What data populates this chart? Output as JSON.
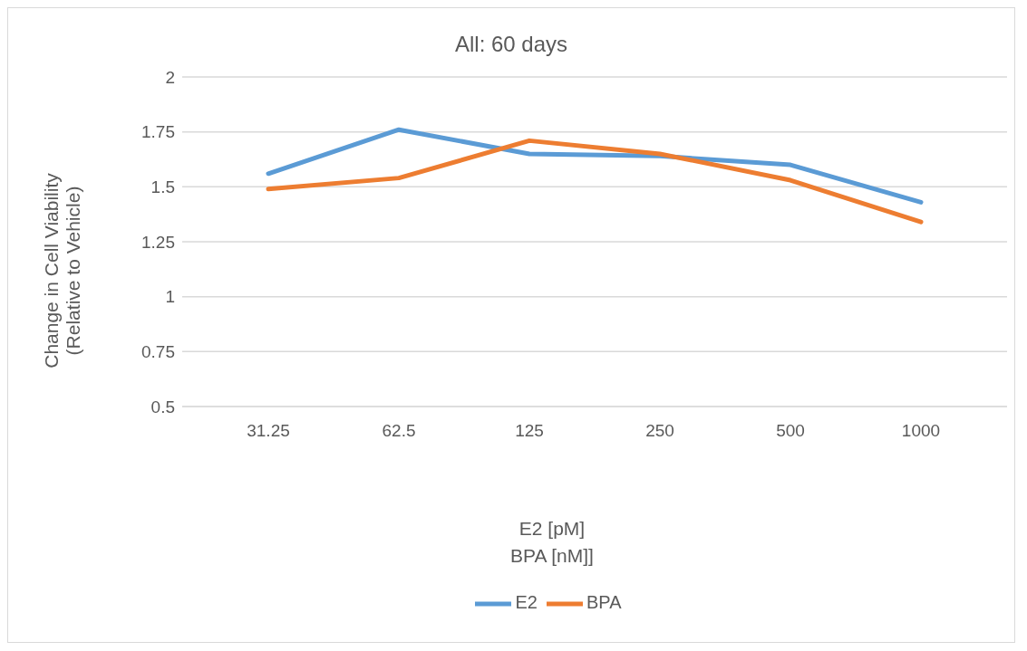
{
  "chart_data": {
    "type": "line",
    "title": "All: 60 days",
    "xlabel": "E2 [pM]\nBPA [nM]]",
    "ylabel": "Change in Cell Viability\n(Relative to Vehicle)",
    "categories": [
      "31.25",
      "62.5",
      "125",
      "250",
      "500",
      "1000"
    ],
    "series": [
      {
        "name": "E2",
        "color": "#5b9bd5",
        "values": [
          1.56,
          1.76,
          1.65,
          1.64,
          1.6,
          1.43
        ]
      },
      {
        "name": "BPA",
        "color": "#ed7d31",
        "values": [
          1.49,
          1.54,
          1.71,
          1.65,
          1.53,
          1.34
        ]
      }
    ],
    "ylim": [
      0.5,
      2
    ],
    "yticks": [
      0.5,
      0.75,
      1,
      1.25,
      1.5,
      1.75,
      2
    ],
    "grid": "y",
    "legend": "bottom",
    "marker": "none",
    "line_style": "solid"
  }
}
